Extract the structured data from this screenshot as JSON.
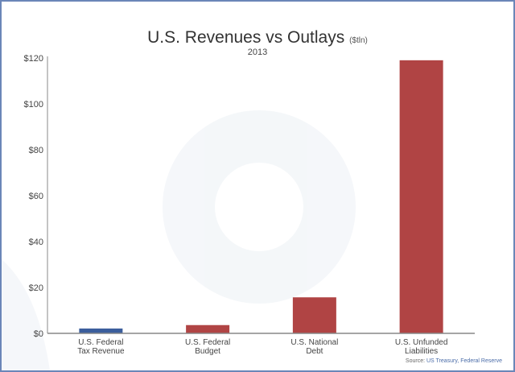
{
  "chart_data": {
    "type": "bar",
    "title": "U.S. Revenues vs Outlays",
    "title_unit": "($tln)",
    "subtitle": "2013",
    "categories": [
      [
        "U.S. Federal",
        "Tax Revenue"
      ],
      [
        "U.S. Federal",
        "Budget"
      ],
      [
        "U.S. National",
        "Debt"
      ],
      [
        "U.S. Unfunded",
        "Liabilities"
      ]
    ],
    "values": [
      2.1,
      3.6,
      15.7,
      119
    ],
    "colors": [
      "#3b5e9c",
      "#b04444",
      "#b04444",
      "#b04444"
    ],
    "ylim": [
      0,
      120
    ],
    "yticks": [
      0,
      20,
      40,
      60,
      80,
      100,
      120
    ],
    "ytick_labels": [
      "$0",
      "$20",
      "$40",
      "$60",
      "$80",
      "$100",
      "$120"
    ],
    "grid": false,
    "source_label": "Source:",
    "source_text": "US Treasury, Federal Reserve"
  }
}
